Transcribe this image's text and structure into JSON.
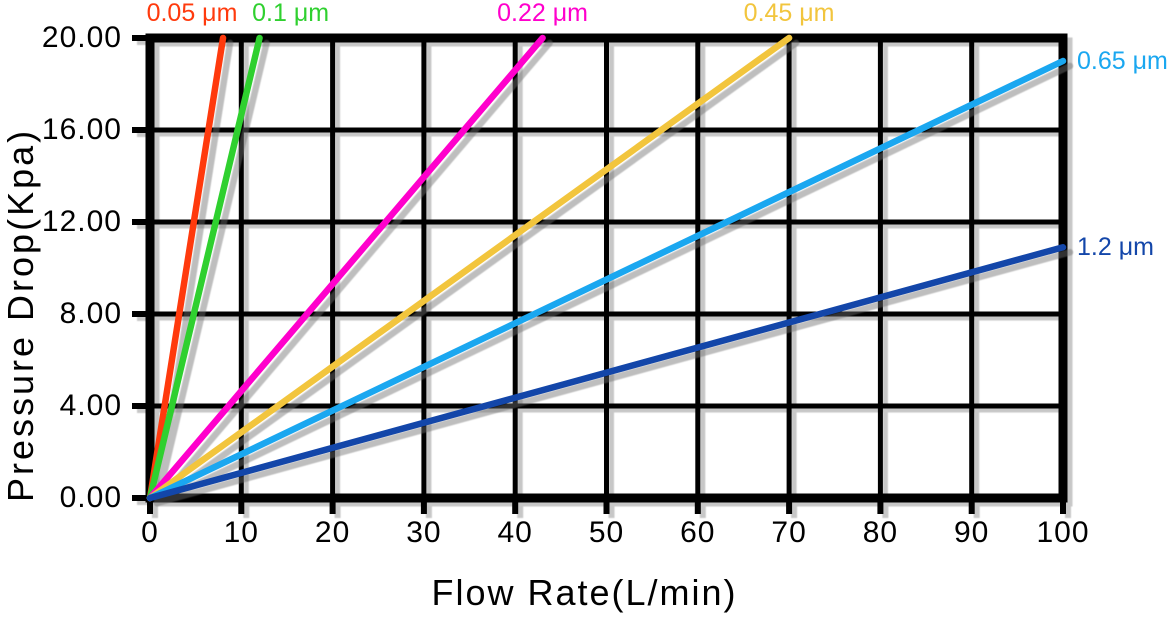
{
  "chart_data": {
    "type": "line",
    "title": "",
    "xlabel": "Flow Rate(L/min)",
    "ylabel": "Pressure Drop(Kpa)",
    "xlim": [
      0,
      100
    ],
    "ylim": [
      0,
      20
    ],
    "x_ticks": [
      0,
      10,
      20,
      30,
      40,
      50,
      60,
      70,
      80,
      90,
      100
    ],
    "y_ticks": [
      {
        "value": 0,
        "label": "0.00"
      },
      {
        "value": 4,
        "label": "4.00"
      },
      {
        "value": 8,
        "label": "8.00"
      },
      {
        "value": 12,
        "label": "12.00"
      },
      {
        "value": 16,
        "label": "16.00"
      },
      {
        "value": 20,
        "label": "20.00"
      }
    ],
    "grid": {
      "x_step": 10,
      "y_step": 4,
      "line_color": "#000000",
      "frame_color": "#000000"
    },
    "legend_position": "labels-at-line-ends",
    "series": [
      {
        "name": "0.05 μm",
        "color": "#ff3a0d",
        "points": [
          [
            0,
            0
          ],
          [
            8,
            20
          ]
        ],
        "label": {
          "side": "top",
          "at": 4.6
        }
      },
      {
        "name": "0.1 μm",
        "color": "#2fd02f",
        "points": [
          [
            0,
            0
          ],
          [
            12,
            20
          ]
        ],
        "label": {
          "side": "top",
          "at": 15.4
        }
      },
      {
        "name": "0.22 μm",
        "color": "#ff00cc",
        "points": [
          [
            0,
            0
          ],
          [
            43,
            20
          ]
        ],
        "label": {
          "side": "top",
          "at": 43
        }
      },
      {
        "name": "0.45 μm",
        "color": "#f2c53d",
        "points": [
          [
            0,
            0
          ],
          [
            70,
            20
          ]
        ],
        "label": {
          "side": "top",
          "at": 70
        }
      },
      {
        "name": "0.65 μm",
        "color": "#1aa7f0",
        "points": [
          [
            0,
            0
          ],
          [
            100,
            19
          ]
        ],
        "label": {
          "side": "right",
          "at": 19
        }
      },
      {
        "name": "1.2 μm",
        "color": "#1346a9",
        "points": [
          [
            0,
            0
          ],
          [
            100,
            10.9
          ]
        ],
        "label": {
          "side": "right",
          "at": 10.9
        }
      }
    ]
  }
}
